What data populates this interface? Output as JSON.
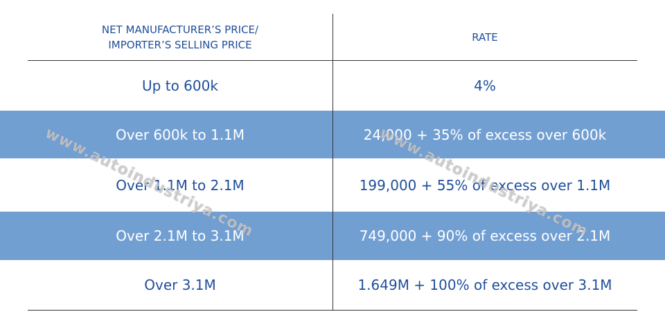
{
  "table": {
    "header": [
      [
        "NET MANUFACTURER’S PRICE/",
        "IMPORTER’S SELLING PRICE"
      ],
      [
        "RATE"
      ]
    ],
    "rows": [
      [
        "Up to 600k",
        "4%"
      ],
      [
        "Over 600k to 1.1M",
        "24,000 + 35% of excess over 600k"
      ],
      [
        "Over 1.1M to 2.1M",
        "199,000 + 55% of excess over 1.1M"
      ],
      [
        "Over 2.1M to 3.1M",
        "749,000 + 90% of excess over 2.1M"
      ],
      [
        "Over 3.1M",
        "1.649M + 100% of excess over 3.1M"
      ]
    ]
  },
  "watermark": "www.autoindustriya.com"
}
